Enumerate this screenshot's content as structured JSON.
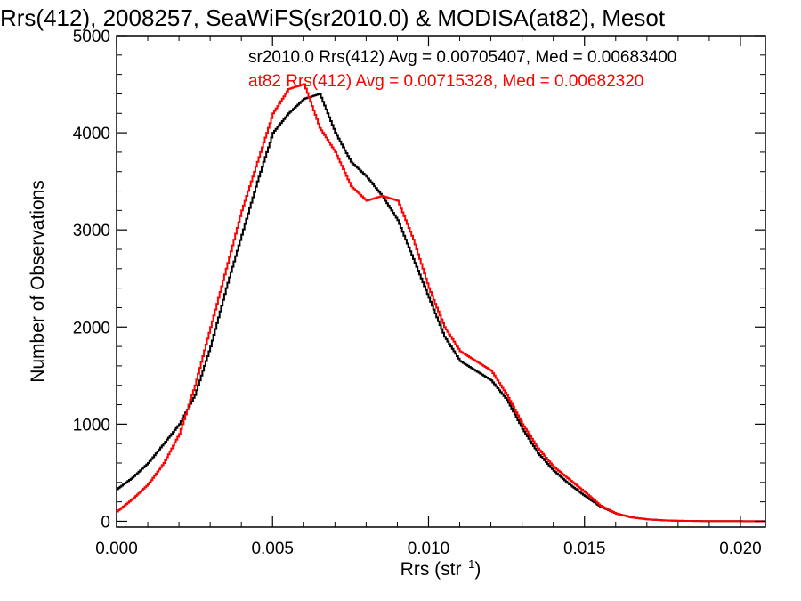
{
  "chart_data": {
    "type": "line",
    "title": "Rrs(412), 2008257, SeaWiFS(sr2010.0) & MODISA(at82), Mesot",
    "xlabel_main": "Rrs (str",
    "xlabel_sup": "−1",
    "xlabel_close": ")",
    "ylabel": "Number of Observations",
    "xlim": [
      0.0,
      0.0208
    ],
    "ylim": [
      -60,
      5000
    ],
    "xticks": [
      "0.000",
      "0.005",
      "0.010",
      "0.015",
      "0.020"
    ],
    "yticks": [
      "0",
      "1000",
      "2000",
      "3000",
      "4000",
      "5000"
    ],
    "grid": false,
    "annotations": [
      {
        "text": "sr2010.0 Rrs(412) Avg = 0.00705407, Med = 0.00683400",
        "color": "#000000"
      },
      {
        "text": "at82 Rrs(412) Avg = 0.00715328, Med = 0.00682320",
        "color": "#ff0000"
      }
    ],
    "series": [
      {
        "color": "#000000",
        "x": [
          0.0,
          0.0005,
          0.001,
          0.0015,
          0.002,
          0.0025,
          0.003,
          0.0035,
          0.004,
          0.0045,
          0.005,
          0.0055,
          0.006,
          0.0065,
          0.007,
          0.0075,
          0.008,
          0.0085,
          0.009,
          0.0095,
          0.01,
          0.0105,
          0.011,
          0.0115,
          0.012,
          0.0125,
          0.013,
          0.0135,
          0.014,
          0.0145,
          0.015,
          0.0155,
          0.016,
          0.0165,
          0.017,
          0.0175,
          0.018,
          0.019,
          0.02,
          0.0208
        ],
        "y": [
          330,
          450,
          600,
          800,
          1000,
          1300,
          1800,
          2400,
          2950,
          3500,
          4000,
          4200,
          4350,
          4400,
          4000,
          3700,
          3550,
          3350,
          3100,
          2700,
          2300,
          1900,
          1650,
          1550,
          1450,
          1250,
          950,
          700,
          520,
          380,
          260,
          150,
          80,
          40,
          20,
          10,
          5,
          2,
          1,
          0
        ]
      },
      {
        "color": "#ff0000",
        "x": [
          0.0,
          0.0005,
          0.001,
          0.0015,
          0.002,
          0.0025,
          0.003,
          0.0035,
          0.004,
          0.0045,
          0.005,
          0.0055,
          0.006,
          0.0065,
          0.007,
          0.0075,
          0.008,
          0.0085,
          0.009,
          0.0095,
          0.01,
          0.0105,
          0.011,
          0.0115,
          0.012,
          0.0125,
          0.013,
          0.0135,
          0.014,
          0.0145,
          0.015,
          0.0155,
          0.016,
          0.0165,
          0.017,
          0.0175,
          0.018,
          0.019,
          0.02,
          0.0208
        ],
        "y": [
          100,
          230,
          380,
          600,
          900,
          1400,
          2000,
          2600,
          3200,
          3700,
          4200,
          4450,
          4500,
          4050,
          3800,
          3450,
          3300,
          3350,
          3300,
          2900,
          2400,
          2000,
          1750,
          1650,
          1550,
          1300,
          1000,
          750,
          560,
          430,
          300,
          160,
          80,
          40,
          20,
          10,
          5,
          2,
          1,
          0
        ]
      }
    ]
  }
}
